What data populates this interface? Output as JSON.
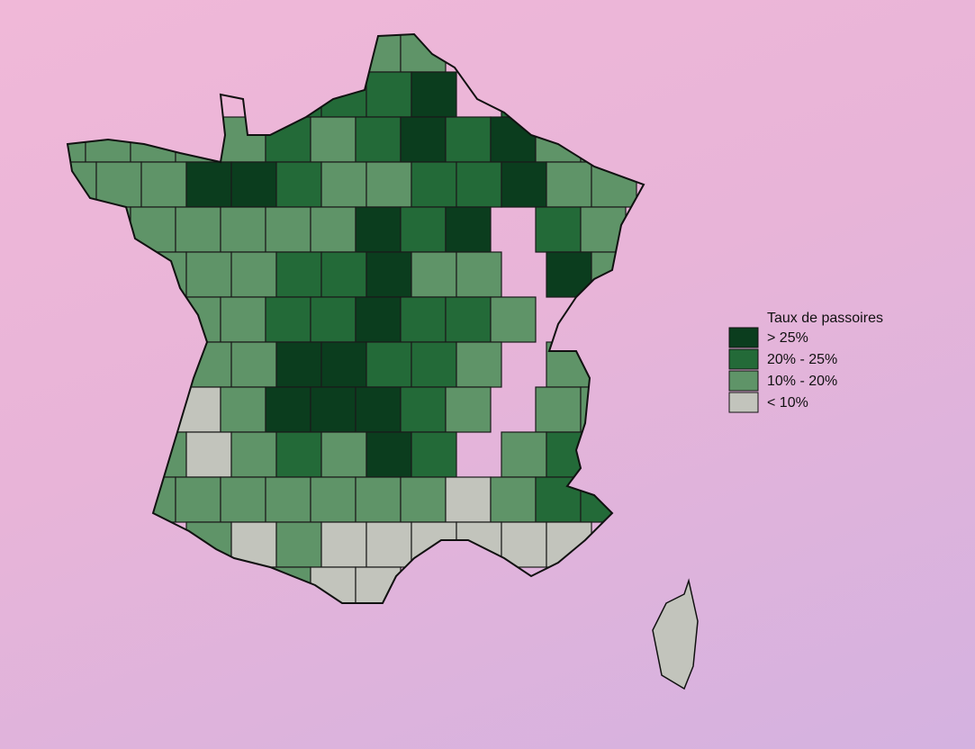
{
  "legend": {
    "title": "Taux de passoires",
    "entries": [
      {
        "label": "> 25%",
        "color": "#0b3d1e"
      },
      {
        "label": "20% - 25%",
        "color": "#236a38"
      },
      {
        "label": "10% - 20%",
        "color": "#5f9468"
      },
      {
        "label": "< 10%",
        "color": "#c2c4bc"
      }
    ]
  }
}
